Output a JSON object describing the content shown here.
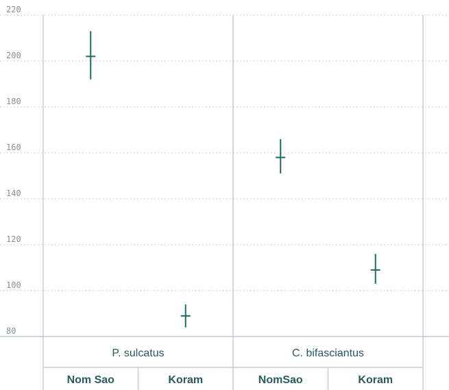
{
  "chart_data": {
    "type": "scatter",
    "title": "",
    "xlabel": "",
    "ylabel": "",
    "ylim": [
      80,
      220
    ],
    "yticks": [
      80,
      100,
      120,
      140,
      160,
      180,
      200,
      220
    ],
    "grid": "horizontal-dotted",
    "groups": [
      {
        "label": "P. sulcatus",
        "categories": [
          {
            "label": "Nom Sao",
            "mean": 202,
            "low": 192,
            "high": 213
          },
          {
            "label": "Koram",
            "mean": 89,
            "low": 84,
            "high": 94
          }
        ]
      },
      {
        "label": "C. bifasciantus",
        "categories": [
          {
            "label": "NomSao",
            "mean": 158,
            "low": 151,
            "high": 166
          },
          {
            "label": "Koram",
            "mean": 109,
            "low": 103,
            "high": 116
          }
        ]
      }
    ],
    "colors": {
      "marker": "#1e6b62",
      "label": "#2a5a5c",
      "grid": "#b8bcc4",
      "frame": "#b8c2d2",
      "tick": "#8a8f98"
    }
  }
}
